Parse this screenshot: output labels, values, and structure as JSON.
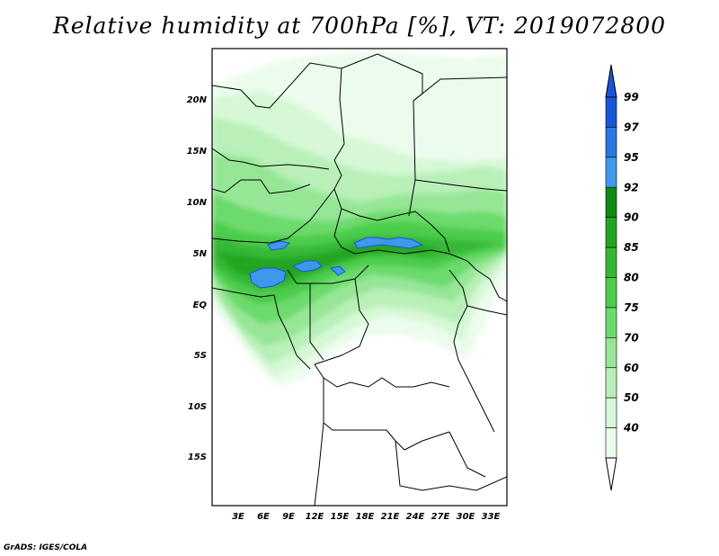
{
  "title": "Relative humidity at 700hPa [%], VT: 2019072800",
  "credit": "GrADS: IGES/COLA",
  "map": {
    "lat_labels": [
      "20N",
      "15N",
      "10N",
      "5N",
      "EQ",
      "5S",
      "10S",
      "15S"
    ],
    "lon_labels": [
      "3E",
      "6E",
      "9E",
      "12E",
      "15E",
      "18E",
      "21E",
      "24E",
      "27E",
      "30E",
      "33E"
    ]
  },
  "legend": {
    "labels": [
      "99",
      "97",
      "95",
      "92",
      "90",
      "85",
      "80",
      "75",
      "70",
      "60",
      "50",
      "40"
    ],
    "colors": [
      "#1a55d6",
      "#2a78e0",
      "#3f98ea",
      "#0c8c14",
      "#22a622",
      "#34b834",
      "#4ccc4c",
      "#6cda6c",
      "#96e696",
      "#b8f0b8",
      "#d6f8d6",
      "#ecfcec"
    ]
  }
}
